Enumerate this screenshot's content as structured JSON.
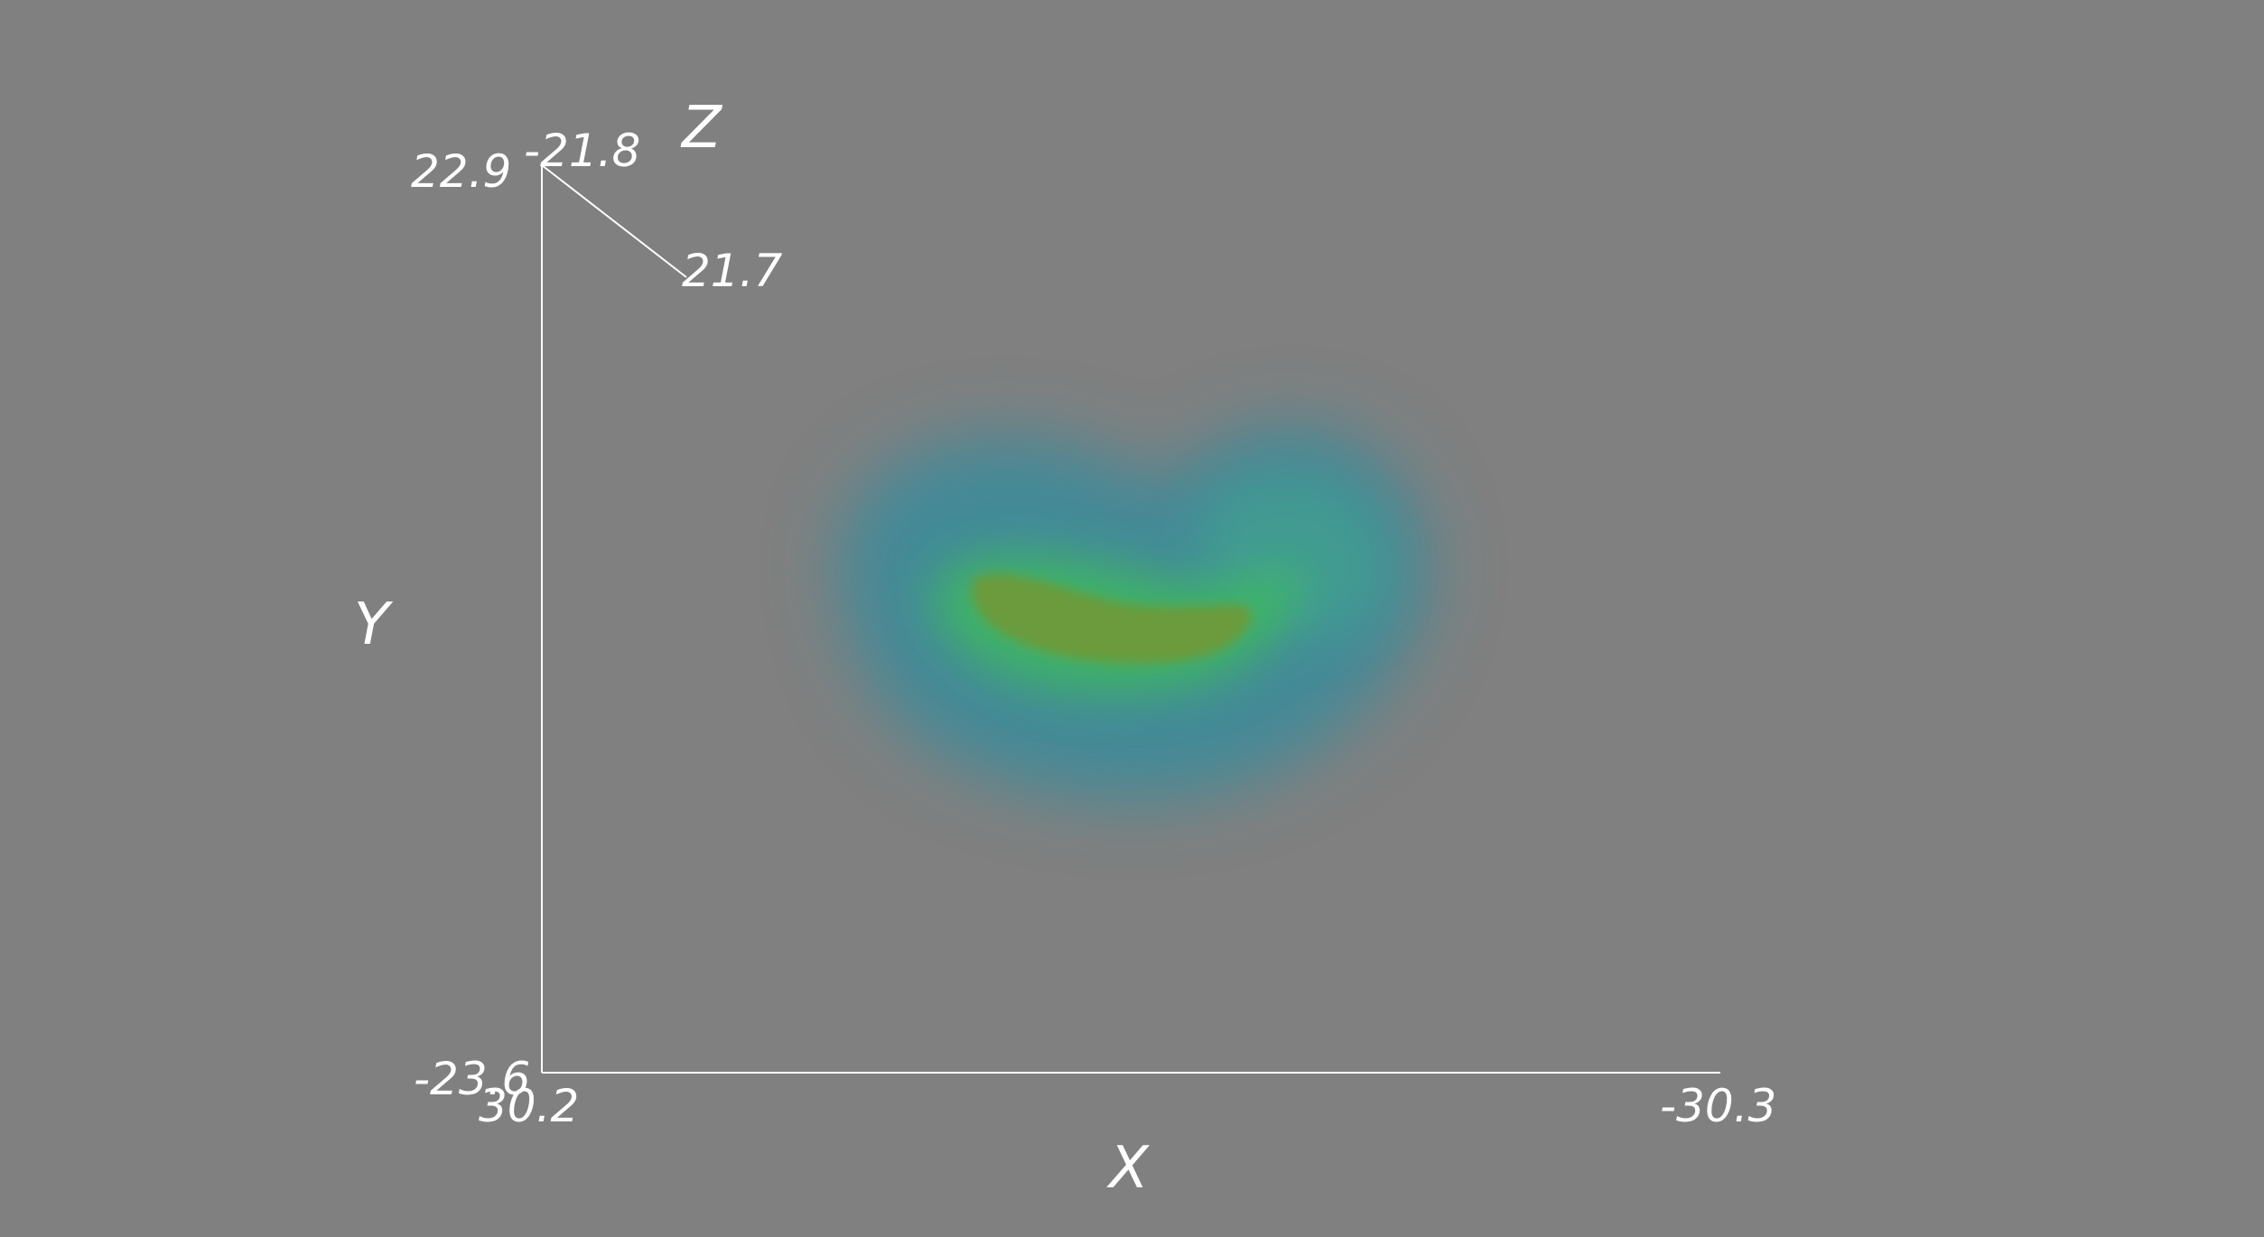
{
  "background_color": "#808080",
  "axes": {
    "x": {
      "title": "X",
      "min_label": "30.2",
      "max_label": "-30.3"
    },
    "y": {
      "title": "Y",
      "min_label": "-23.6",
      "max_label": "22.9"
    },
    "z": {
      "title": "Z",
      "min_label": "-21.8",
      "max_label": "21.7"
    },
    "color": "#ffffff"
  },
  "volume": {
    "colormap": [
      "#3f8a99",
      "#40a090",
      "#3fb860",
      "#3fc050",
      "#6e9a3a"
    ],
    "description_colors": {
      "outer": "#3f8a99",
      "mid": "#3fb860",
      "core": "#6e9a3a"
    }
  }
}
